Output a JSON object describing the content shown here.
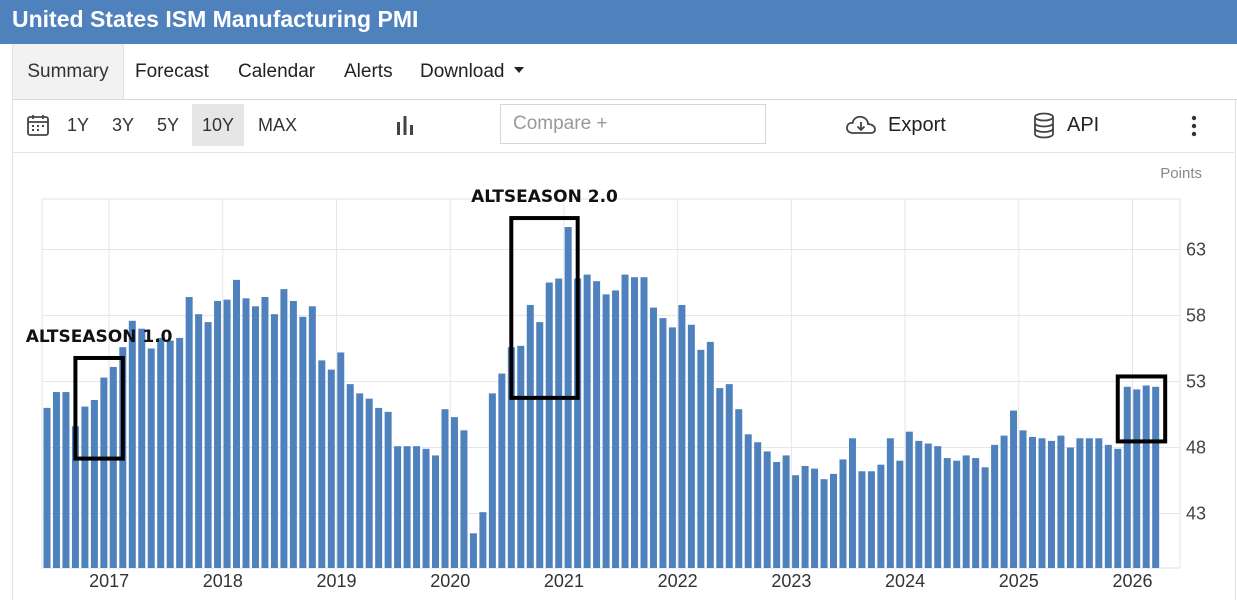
{
  "header": {
    "title": "United States ISM Manufacturing PMI"
  },
  "tabs": [
    {
      "label": "Summary",
      "active": true
    },
    {
      "label": "Forecast"
    },
    {
      "label": "Calendar"
    },
    {
      "label": "Alerts"
    },
    {
      "label": "Download"
    }
  ],
  "toolbar": {
    "ranges": [
      "1Y",
      "3Y",
      "5Y",
      "10Y",
      "MAX"
    ],
    "active_range": "10Y",
    "compare_placeholder": "Compare +",
    "export_label": "Export",
    "api_label": "API"
  },
  "chart_data": {
    "type": "bar",
    "unit_label": "Points",
    "ylim": [
      39,
      67
    ],
    "yticks": [
      43,
      48,
      53,
      58,
      63
    ],
    "x_start": "2016-06",
    "xtick_labels": [
      "2017",
      "2018",
      "2019",
      "2020",
      "2021",
      "2022",
      "2023",
      "2024",
      "2025",
      "2026"
    ],
    "bar_color": "#4f81bd",
    "grid": true,
    "values": [
      51.0,
      52.2,
      52.2,
      49.6,
      51.1,
      51.6,
      53.3,
      54.1,
      55.6,
      57.6,
      57.0,
      55.5,
      56.3,
      56.1,
      56.3,
      59.4,
      58.1,
      57.5,
      59.1,
      59.2,
      60.7,
      59.3,
      58.7,
      59.4,
      58.1,
      60.0,
      59.1,
      57.9,
      58.7,
      54.6,
      53.9,
      55.2,
      52.8,
      52.1,
      51.7,
      51.0,
      50.7,
      48.1,
      48.1,
      48.1,
      47.9,
      47.4,
      50.9,
      50.3,
      49.3,
      41.5,
      43.1,
      52.1,
      53.6,
      55.6,
      55.7,
      58.8,
      57.5,
      60.5,
      60.8,
      64.7,
      60.8,
      61.1,
      60.6,
      59.6,
      59.9,
      61.1,
      60.9,
      60.9,
      58.6,
      57.8,
      57.1,
      58.8,
      57.3,
      55.4,
      56.0,
      52.5,
      52.8,
      50.9,
      49.0,
      48.4,
      47.7,
      46.9,
      47.4,
      45.9,
      46.6,
      46.4,
      45.6,
      46.0,
      47.1,
      48.7,
      46.2,
      46.2,
      46.7,
      48.7,
      47.0,
      49.2,
      48.5,
      48.3,
      48.1,
      47.2,
      47.0,
      47.4,
      47.2,
      46.5,
      48.2,
      48.9,
      50.8,
      49.3,
      48.8,
      48.7,
      48.5,
      48.9,
      48.0,
      48.7,
      48.7,
      48.7,
      48.2,
      47.9,
      52.6,
      52.4,
      52.7,
      52.6
    ],
    "annotations": [
      {
        "text": "ALTSEASON 1.0",
        "box": [
          "2016-10",
          "2017-01"
        ]
      },
      {
        "text": "ALTSEASON 2.0",
        "box": [
          "2020-08",
          "2021-01"
        ]
      },
      {
        "text": "",
        "box": [
          "2025-12",
          "2026-03"
        ]
      }
    ]
  }
}
